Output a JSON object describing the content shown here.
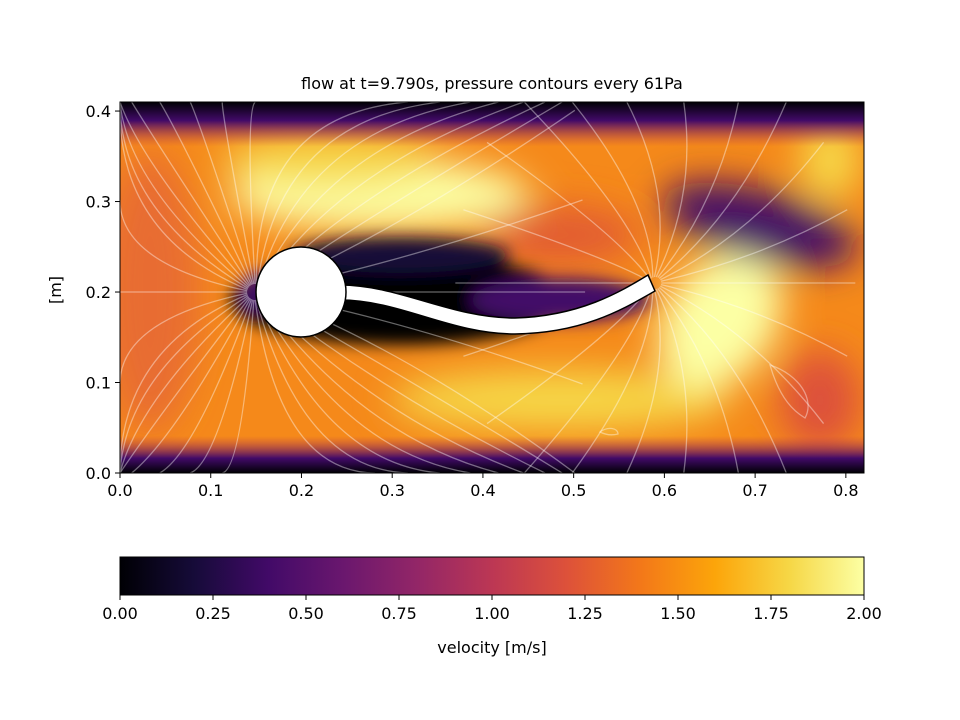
{
  "chart_data": {
    "type": "heatmap",
    "title": "flow at t=9.790s, pressure contours every 61Pa",
    "xlabel": "",
    "ylabel": "[m]",
    "xlim": [
      0,
      0.82
    ],
    "ylim": [
      0,
      0.41
    ],
    "xticks": [
      "0.0",
      "0.1",
      "0.2",
      "0.3",
      "0.4",
      "0.5",
      "0.6",
      "0.7",
      "0.8"
    ],
    "xtick_values": [
      0,
      0.1,
      0.2,
      0.3,
      0.4,
      0.5,
      0.6,
      0.7,
      0.8
    ],
    "yticks": [
      "0.0",
      "0.1",
      "0.2",
      "0.3",
      "0.4"
    ],
    "ytick_values": [
      0,
      0.1,
      0.2,
      0.3,
      0.4
    ],
    "colormap": "inferno",
    "field": "velocity magnitude",
    "contour_field": "pressure",
    "contour_interval_pa": 61,
    "obstacle": {
      "type": "circle",
      "center": [
        0.2,
        0.2
      ],
      "radius": 0.05
    },
    "flag_tip": [
      0.59,
      0.21
    ],
    "colorbar": {
      "label": "velocity [m/s]",
      "range": [
        0,
        2
      ],
      "ticks": [
        "0.00",
        "0.25",
        "0.50",
        "0.75",
        "1.00",
        "1.25",
        "1.50",
        "1.75",
        "2.00"
      ],
      "tick_values": [
        0,
        0.25,
        0.5,
        0.75,
        1.0,
        1.25,
        1.5,
        1.75,
        2.0
      ],
      "orientation": "horizontal",
      "placement": "bottom"
    }
  }
}
